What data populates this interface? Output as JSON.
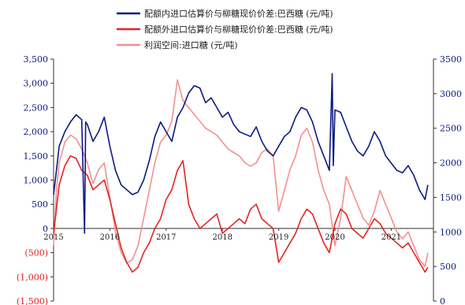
{
  "chart_data": {
    "type": "line",
    "title": "",
    "xlabel": "",
    "x_ticks": [
      "2015",
      "2016",
      "2017",
      "2018",
      "2019",
      "2020",
      "2021"
    ],
    "left_axis": {
      "ylim": [
        -1500,
        3500
      ],
      "ticks": [
        -1500,
        -1000,
        -500,
        0,
        500,
        1000,
        1500,
        2000,
        2500,
        3000,
        3500
      ],
      "tick_labels": [
        "(1,500)",
        "(1,000)",
        "(500)",
        "0",
        "500",
        "1,000",
        "1,500",
        "2,000",
        "2,500",
        "3,000",
        "3,500"
      ],
      "negative_color": "#e31c1c"
    },
    "right_axis": {
      "ylim": [
        0,
        3500
      ],
      "ticks": [
        0,
        500,
        1000,
        1500,
        2000,
        2500,
        3000,
        3500
      ],
      "tick_labels": [
        "0",
        "500",
        "1000",
        "1500",
        "2000",
        "2500",
        "3000",
        "3500"
      ]
    },
    "grid": false,
    "legend_position": "top-center",
    "series": [
      {
        "name": "配额内进口估算价与柳糖现价价差:巴西糖 (元/吨)",
        "color": "#0b1a80",
        "axis": "left",
        "x": [
          2015.0,
          2015.05,
          2015.1,
          2015.2,
          2015.3,
          2015.4,
          2015.5,
          2015.55,
          2015.57,
          2015.6,
          2015.7,
          2015.8,
          2015.9,
          2016.0,
          2016.1,
          2016.2,
          2016.3,
          2016.4,
          2016.5,
          2016.6,
          2016.7,
          2016.8,
          2016.9,
          2017.0,
          2017.1,
          2017.2,
          2017.3,
          2017.4,
          2017.5,
          2017.6,
          2017.7,
          2017.8,
          2017.9,
          2018.0,
          2018.1,
          2018.2,
          2018.3,
          2018.4,
          2018.5,
          2018.6,
          2018.7,
          2018.8,
          2018.9,
          2019.0,
          2019.1,
          2019.2,
          2019.3,
          2019.4,
          2019.5,
          2019.6,
          2019.7,
          2019.8,
          2019.9,
          2019.95,
          2019.97,
          2020.0,
          2020.1,
          2020.2,
          2020.3,
          2020.4,
          2020.5,
          2020.6,
          2020.7,
          2020.8,
          2020.9,
          2021.0,
          2021.1,
          2021.2,
          2021.3,
          2021.4,
          2021.5,
          2021.6,
          2021.65
        ],
        "values": [
          700,
          1200,
          1700,
          2000,
          2200,
          2350,
          2250,
          -100,
          2200,
          2150,
          1800,
          2000,
          2300,
          1700,
          1200,
          900,
          800,
          700,
          750,
          1000,
          1400,
          1900,
          2200,
          2000,
          1800,
          2300,
          2500,
          2800,
          2950,
          2900,
          2600,
          2700,
          2500,
          2300,
          2400,
          2150,
          2000,
          1950,
          1900,
          2100,
          1800,
          1600,
          1500,
          1700,
          1900,
          2000,
          2300,
          2500,
          2450,
          2200,
          1800,
          1500,
          1200,
          3200,
          1300,
          2450,
          2400,
          2100,
          1800,
          1600,
          1500,
          1700,
          2000,
          1800,
          1500,
          1350,
          1200,
          1150,
          1300,
          1100,
          800,
          600,
          900
        ]
      },
      {
        "name": "配额外进口估算价与柳糖现价价差:巴西糖 (元/吨)",
        "color": "#e52323",
        "axis": "left",
        "x": [
          2015.0,
          2015.05,
          2015.1,
          2015.2,
          2015.3,
          2015.4,
          2015.5,
          2015.6,
          2015.7,
          2015.8,
          2015.9,
          2016.0,
          2016.1,
          2016.2,
          2016.3,
          2016.4,
          2016.5,
          2016.6,
          2016.7,
          2016.8,
          2016.9,
          2017.0,
          2017.1,
          2017.2,
          2017.3,
          2017.4,
          2017.5,
          2017.6,
          2017.7,
          2017.8,
          2017.9,
          2018.0,
          2018.1,
          2018.2,
          2018.3,
          2018.4,
          2018.5,
          2018.6,
          2018.7,
          2018.8,
          2018.9,
          2019.0,
          2019.1,
          2019.2,
          2019.3,
          2019.4,
          2019.5,
          2019.6,
          2019.7,
          2019.8,
          2019.9,
          2020.0,
          2020.1,
          2020.2,
          2020.3,
          2020.4,
          2020.5,
          2020.6,
          2020.7,
          2020.8,
          2020.9,
          2021.0,
          2021.1,
          2021.2,
          2021.3,
          2021.4,
          2021.5,
          2021.6,
          2021.65
        ],
        "values": [
          -100,
          400,
          900,
          1300,
          1500,
          1450,
          1200,
          1100,
          800,
          900,
          1000,
          600,
          100,
          -400,
          -700,
          -900,
          -800,
          -500,
          -300,
          0,
          200,
          600,
          800,
          1200,
          1400,
          500,
          200,
          0,
          100,
          200,
          300,
          -100,
          0,
          100,
          200,
          100,
          400,
          500,
          200,
          100,
          0,
          -700,
          -500,
          -300,
          -100,
          200,
          400,
          300,
          0,
          -300,
          -500,
          100,
          400,
          300,
          0,
          -100,
          -200,
          0,
          200,
          100,
          -100,
          -200,
          -300,
          -400,
          -300,
          -500,
          -700,
          -900,
          -800
        ]
      },
      {
        "name": "利润空间:进口糖 (元/吨)",
        "color": "#f58f8f",
        "axis": "right",
        "x": [
          2015.0,
          2015.05,
          2015.1,
          2015.2,
          2015.3,
          2015.4,
          2015.5,
          2015.6,
          2015.7,
          2015.8,
          2015.9,
          2016.0,
          2016.1,
          2016.2,
          2016.3,
          2016.4,
          2016.5,
          2016.6,
          2016.7,
          2016.8,
          2016.9,
          2017.0,
          2017.1,
          2017.2,
          2017.3,
          2017.4,
          2017.5,
          2017.6,
          2017.7,
          2017.8,
          2017.9,
          2018.0,
          2018.1,
          2018.2,
          2018.3,
          2018.4,
          2018.5,
          2018.6,
          2018.7,
          2018.8,
          2018.9,
          2019.0,
          2019.1,
          2019.2,
          2019.3,
          2019.4,
          2019.5,
          2019.6,
          2019.7,
          2019.8,
          2019.9,
          2020.0,
          2020.1,
          2020.2,
          2020.3,
          2020.4,
          2020.5,
          2020.6,
          2020.7,
          2020.8,
          2020.9,
          2021.0,
          2021.1,
          2021.2,
          2021.3,
          2021.4,
          2021.5,
          2021.6,
          2021.65
        ],
        "values": [
          800,
          1600,
          2000,
          2300,
          2400,
          2350,
          2200,
          2000,
          1700,
          1900,
          2000,
          1500,
          1000,
          700,
          550,
          600,
          800,
          1200,
          1600,
          2000,
          2300,
          2400,
          2600,
          3200,
          2900,
          2800,
          2700,
          2600,
          2500,
          2450,
          2400,
          2300,
          2200,
          2150,
          2100,
          2000,
          1950,
          2000,
          2150,
          2200,
          2100,
          1300,
          1600,
          1900,
          2100,
          2400,
          2500,
          2300,
          1900,
          1600,
          1400,
          800,
          1200,
          1800,
          1600,
          1400,
          1200,
          1100,
          1300,
          1600,
          1400,
          1200,
          1000,
          900,
          1000,
          800,
          600,
          500,
          700
        ]
      }
    ]
  }
}
